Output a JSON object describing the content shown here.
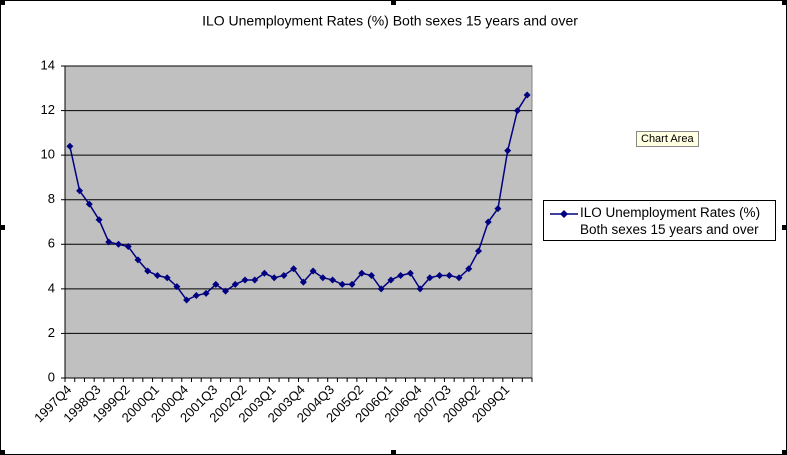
{
  "chart_data": {
    "type": "line",
    "title": "ILO Unemployment Rates (%) Both sexes 15 years and over",
    "categories": [
      "1997Q4",
      null,
      null,
      "1998Q3",
      null,
      null,
      "1999Q2",
      null,
      null,
      "2000Q1",
      null,
      null,
      "2000Q4",
      null,
      null,
      "2001Q3",
      null,
      null,
      "2002Q2",
      null,
      null,
      "2003Q1",
      null,
      null,
      "2003Q4",
      null,
      null,
      "2004Q3",
      null,
      null,
      "2005Q2",
      null,
      null,
      "2006Q1",
      null,
      null,
      "2006Q4",
      null,
      null,
      "2007Q3",
      null,
      null,
      "2008Q2",
      null,
      null,
      "2009Q1",
      null,
      null
    ],
    "series": [
      {
        "name": "ILO Unemployment Rates (%) Both sexes 15 years and over",
        "color": "#000080",
        "values": [
          10.4,
          8.4,
          7.8,
          7.1,
          6.1,
          6.0,
          5.9,
          5.3,
          4.8,
          4.6,
          4.5,
          4.1,
          3.5,
          3.7,
          3.8,
          4.2,
          3.9,
          4.2,
          4.4,
          4.4,
          4.7,
          4.5,
          4.6,
          4.9,
          4.3,
          4.8,
          4.5,
          4.4,
          4.2,
          4.2,
          4.7,
          4.6,
          4.0,
          4.4,
          4.6,
          4.7,
          4.0,
          4.5,
          4.6,
          4.6,
          4.5,
          4.9,
          5.7,
          7.0,
          7.6,
          10.2,
          12.0,
          12.7
        ]
      }
    ],
    "ylim": [
      0,
      14
    ],
    "yticks": [
      0,
      2,
      4,
      6,
      8,
      10,
      12,
      14
    ],
    "grid": true,
    "legend": "right"
  },
  "tooltip": "Chart Area"
}
